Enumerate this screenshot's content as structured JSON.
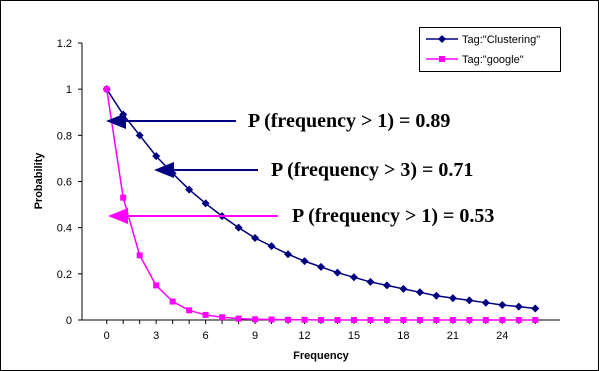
{
  "chart_data": {
    "type": "line",
    "title": "",
    "xlabel": "Frequency",
    "ylabel": "Probability",
    "xlim": [
      -1.5,
      27.5
    ],
    "ylim": [
      0,
      1.2
    ],
    "xticks": [
      0,
      3,
      6,
      9,
      12,
      15,
      18,
      21,
      24
    ],
    "yticks": [
      0,
      0.2,
      0.4,
      0.6,
      0.8,
      1,
      1.2
    ],
    "ytick_labels": [
      "0",
      "0.2",
      "0.4",
      "0.6",
      "0.8",
      "1",
      "1.2"
    ],
    "grid": false,
    "legend_position": "top-right",
    "series": [
      {
        "name": "Tag:\"Clustering\"",
        "color": "#000080",
        "marker": "diamond",
        "x": [
          0,
          1,
          2,
          3,
          4,
          5,
          6,
          7,
          8,
          9,
          10,
          11,
          12,
          13,
          14,
          15,
          16,
          17,
          18,
          19,
          20,
          21,
          22,
          23,
          24,
          25,
          26
        ],
        "values": [
          1,
          0.89,
          0.8,
          0.71,
          0.635,
          0.565,
          0.505,
          0.45,
          0.4,
          0.355,
          0.32,
          0.285,
          0.255,
          0.23,
          0.205,
          0.185,
          0.165,
          0.15,
          0.135,
          0.12,
          0.105,
          0.095,
          0.085,
          0.075,
          0.065,
          0.058,
          0.05
        ]
      },
      {
        "name": "Tag:\"google\"",
        "color": "#ff00ff",
        "marker": "square",
        "x": [
          0,
          1,
          2,
          3,
          4,
          5,
          6,
          7,
          8,
          9,
          10,
          11,
          12,
          13,
          14,
          15,
          16,
          17,
          18,
          19,
          20,
          21,
          22,
          23,
          24,
          25,
          26
        ],
        "values": [
          1,
          0.53,
          0.28,
          0.15,
          0.08,
          0.042,
          0.022,
          0.012,
          0.006,
          0.003,
          0.002,
          0.001,
          0.001,
          0,
          0,
          0,
          0,
          0,
          0,
          0,
          0,
          0,
          0,
          0,
          0,
          0,
          0
        ]
      }
    ],
    "annotations": [
      {
        "text": "P (frequency > 1)  = 0.89",
        "color": "#000080",
        "target": {
          "x": 1,
          "y": 0.89
        }
      },
      {
        "text": "P (frequency > 3)  = 0.71",
        "color": "#000080",
        "target": {
          "x": 3,
          "y": 0.71
        }
      },
      {
        "text": "P (frequency > 1)  = 0.53",
        "color": "#ff00ff",
        "target": {
          "x": 1,
          "y": 0.53
        }
      }
    ]
  }
}
